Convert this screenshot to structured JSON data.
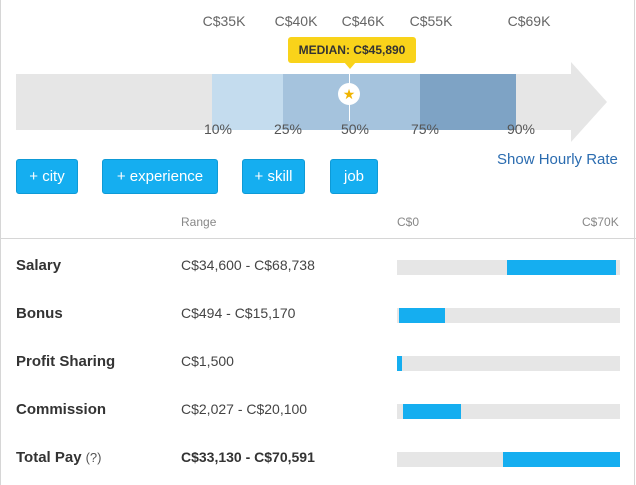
{
  "percentiles": {
    "values": [
      "C$35K",
      "C$40K",
      "C$46K",
      "C$55K",
      "C$69K"
    ],
    "labels": [
      "10%",
      "25%",
      "50%",
      "75%",
      "90%"
    ]
  },
  "median": {
    "label": "MEDIAN: C$45,890",
    "marker_icon": "star-icon",
    "marker_color": "#f0b400"
  },
  "filters": {
    "city": "+ city",
    "experience": "+ experience",
    "skill": "+ skill",
    "job": "job"
  },
  "hourly_link": "Show Hourly Rate",
  "table": {
    "headers": {
      "range": "Range",
      "scale_min": "C$0",
      "scale_max": "C$70K"
    },
    "scale": [
      0,
      70000
    ],
    "rows": [
      {
        "label": "Salary",
        "range": "C$34,600 - C$68,738",
        "min": 34600,
        "max": 68738
      },
      {
        "label": "Bonus",
        "range": "C$494 - C$15,170",
        "min": 494,
        "max": 15170
      },
      {
        "label": "Profit Sharing",
        "range": "C$1,500",
        "min": 0,
        "max": 1500
      },
      {
        "label": "Commission",
        "range": "C$2,027 - C$20,100",
        "min": 2027,
        "max": 20100
      },
      {
        "label": "Total Pay",
        "help": "(?)",
        "range": "C$33,130 - C$70,591",
        "min": 33130,
        "max": 70591
      }
    ]
  },
  "colors": {
    "accent": "#15aef0",
    "link": "#2b6cb0",
    "median_badge": "#f9d31a",
    "band_light": "#c4dcee",
    "band_mid": "#a5c3dd",
    "band_dark": "#7ea3c5"
  }
}
